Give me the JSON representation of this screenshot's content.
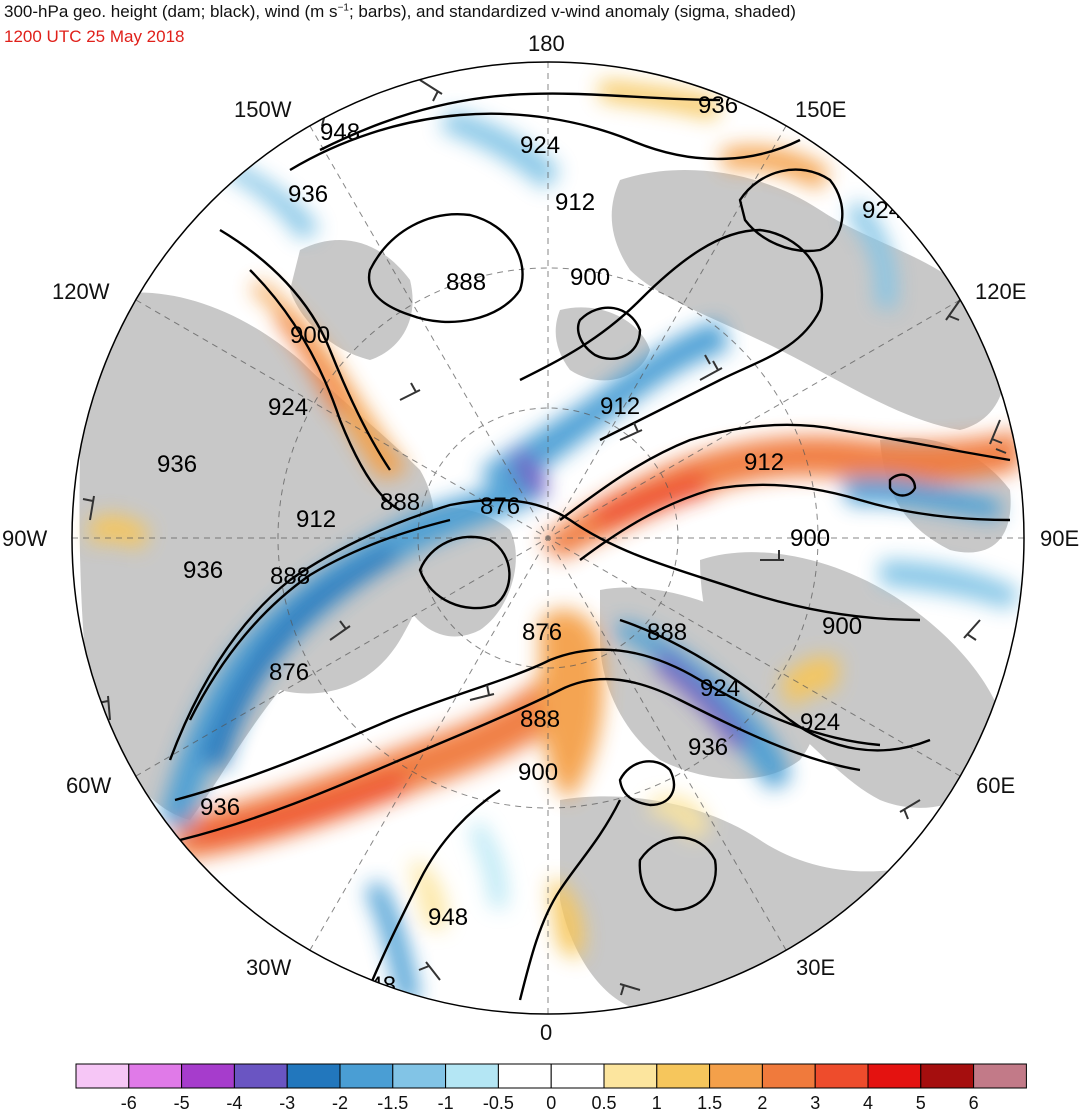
{
  "title": {
    "pre": "300-hPa geo. height (dam; black), wind (m s",
    "sup": "−1",
    "post": "; barbs), and standardized v-wind anomaly (sigma, shaded)"
  },
  "subtitle": "1200 UTC 25 May 2018",
  "longitude_labels": {
    "n180": "180",
    "w150": "150W",
    "e150": "150E",
    "w120": "120W",
    "e120": "120E",
    "w90": "90W",
    "e90": "90E",
    "w60": "60W",
    "e60": "60E",
    "w30": "30W",
    "e30": "30E",
    "s0": "0"
  },
  "height_contour_labels": [
    "936",
    "948",
    "924",
    "936",
    "912",
    "924",
    "888",
    "900",
    "900",
    "924",
    "912",
    "936",
    "888",
    "876",
    "912",
    "912",
    "888",
    "936",
    "900",
    "876",
    "888",
    "900",
    "876",
    "888",
    "924",
    "924",
    "936",
    "900",
    "936",
    "948"
  ],
  "colorbar": {
    "tick_labels": [
      "-6",
      "-5",
      "-4",
      "-3",
      "-2",
      "-1.5",
      "-1",
      "-0.5",
      "0",
      "0.5",
      "1",
      "1.5",
      "2",
      "3",
      "4",
      "5",
      "6"
    ],
    "colors": [
      "#f6c6f6",
      "#e07ae8",
      "#a63ccc",
      "#6a55c2",
      "#2277bd",
      "#4a9ed4",
      "#82c4e6",
      "#b4e6f4",
      "#ffffff",
      "#ffffff",
      "#fce59e",
      "#f6c65c",
      "#f4a04a",
      "#f07a3c",
      "#ee4c2c",
      "#e41210",
      "#a50e0e",
      "#c27a88"
    ]
  },
  "colors": {
    "land": "#c8c8c8",
    "ocean": "#ffffff",
    "contour": "#000000",
    "barb": "#333333",
    "title_date": "#e0201a"
  }
}
